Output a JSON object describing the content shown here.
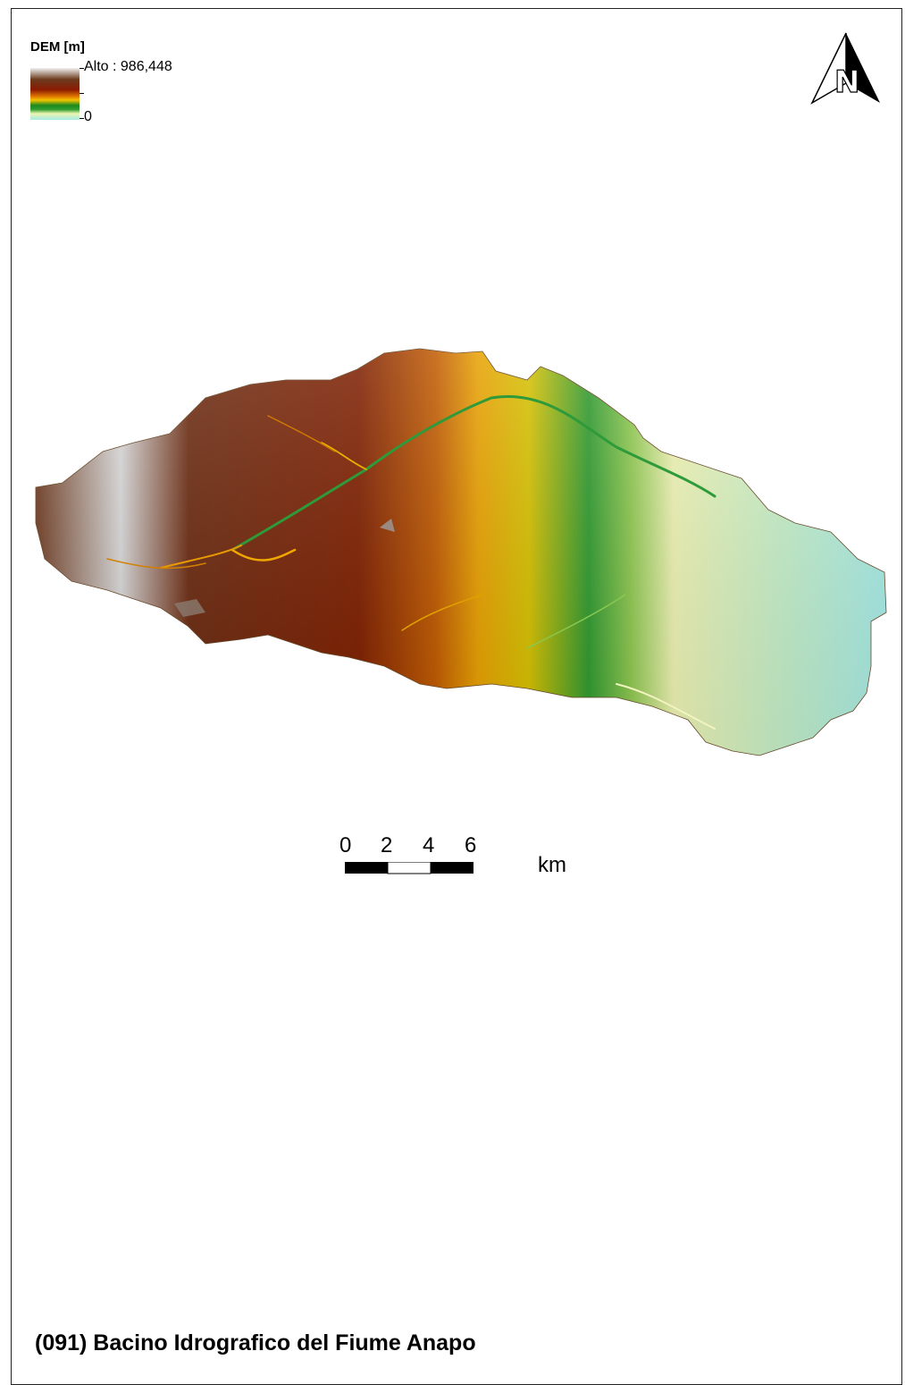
{
  "legend": {
    "title": "DEM [m]",
    "high_label": "Alto : 986,448",
    "low_label": "0",
    "ramp_colors": [
      "#f2f2f2",
      "#6b3b1f",
      "#8b1a00",
      "#e07800",
      "#f3c400",
      "#1f8a1f",
      "#2e9c2e",
      "#eef5b0",
      "#a5ebe6"
    ]
  },
  "north_arrow": {
    "icon": "north-arrow-icon",
    "letter": "N"
  },
  "scale": {
    "labels": [
      "0",
      "2",
      "4",
      "6"
    ],
    "unit": "km"
  },
  "colors": {
    "frame": "#222222",
    "background": "#ffffff"
  },
  "title": "(091) Bacino Idrografico del Fiume Anapo"
}
